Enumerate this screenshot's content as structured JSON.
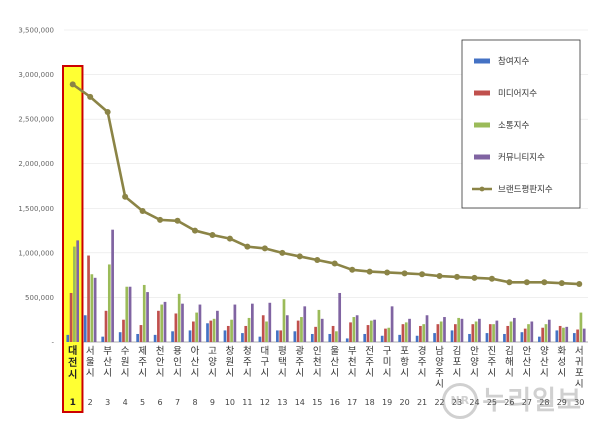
{
  "chart_data": {
    "type": "bar",
    "categories": [
      "대전시",
      "서울시",
      "부산시",
      "수원시",
      "제주시",
      "천안시",
      "용인시",
      "아산시",
      "고양시",
      "창원시",
      "청주시",
      "대구시",
      "평택시",
      "광주시",
      "인천시",
      "울산시",
      "부천시",
      "전주시",
      "구미시",
      "포항시",
      "경주시",
      "남양주시",
      "김포시",
      "안양시",
      "진주시",
      "김해시",
      "안산시",
      "양산시",
      "화성시",
      "서귀포시"
    ],
    "ranks": [
      "1",
      "2",
      "3",
      "4",
      "5",
      "6",
      "7",
      "8",
      "9",
      "10",
      "11",
      "12",
      "13",
      "14",
      "15",
      "16",
      "17",
      "18",
      "19",
      "20",
      "21",
      "22",
      "23",
      "24",
      "25",
      "26",
      "27",
      "28",
      "29",
      "30"
    ],
    "series": [
      {
        "name": "참여지수",
        "color": "#4472c4",
        "values": [
          80000,
          300000,
          60000,
          110000,
          90000,
          80000,
          120000,
          130000,
          210000,
          130000,
          100000,
          60000,
          130000,
          120000,
          90000,
          90000,
          40000,
          90000,
          70000,
          80000,
          70000,
          100000,
          130000,
          90000,
          100000,
          90000,
          110000,
          60000,
          130000,
          100000
        ]
      },
      {
        "name": "미디어지수",
        "color": "#c0504d",
        "values": [
          550000,
          970000,
          350000,
          250000,
          190000,
          350000,
          320000,
          230000,
          240000,
          180000,
          180000,
          300000,
          130000,
          240000,
          170000,
          180000,
          220000,
          190000,
          150000,
          200000,
          180000,
          200000,
          200000,
          200000,
          200000,
          180000,
          150000,
          160000,
          180000,
          140000
        ]
      },
      {
        "name": "소통지수",
        "color": "#9bbb59",
        "values": [
          1070000,
          760000,
          870000,
          620000,
          640000,
          420000,
          540000,
          330000,
          260000,
          250000,
          270000,
          230000,
          480000,
          280000,
          360000,
          120000,
          280000,
          240000,
          160000,
          220000,
          200000,
          230000,
          270000,
          230000,
          200000,
          230000,
          200000,
          200000,
          160000,
          330000
        ]
      },
      {
        "name": "커뮤니티지수",
        "color": "#8064a2",
        "values": [
          1140000,
          720000,
          1260000,
          620000,
          560000,
          450000,
          430000,
          420000,
          350000,
          420000,
          430000,
          440000,
          300000,
          400000,
          260000,
          550000,
          300000,
          250000,
          400000,
          260000,
          300000,
          280000,
          260000,
          260000,
          240000,
          270000,
          230000,
          250000,
          170000,
          150000
        ]
      },
      {
        "name": "브랜드평판지수",
        "color": "#8b8446",
        "type": "line",
        "values": [
          2890000,
          2750000,
          2580000,
          1630000,
          1470000,
          1370000,
          1360000,
          1250000,
          1200000,
          1160000,
          1070000,
          1050000,
          1000000,
          960000,
          920000,
          880000,
          810000,
          790000,
          780000,
          770000,
          760000,
          740000,
          730000,
          720000,
          710000,
          670000,
          670000,
          670000,
          660000,
          650000
        ]
      }
    ],
    "ylim": [
      0,
      3500000
    ],
    "yticks": [
      "-",
      "500,000",
      "1,000,000",
      "1,500,000",
      "2,000,000",
      "2,500,000",
      "3,000,000",
      "3,500,000"
    ],
    "ytick_values": [
      0,
      500000,
      1000000,
      1500000,
      2000000,
      2500000,
      3000000,
      3500000
    ],
    "highlight_index": 0,
    "highlight_color": "#ffff33",
    "highlight_border": "#cc0000",
    "legend_position": "top-right"
  },
  "watermark": {
    "logo": "NR",
    "text": "누리일보"
  }
}
